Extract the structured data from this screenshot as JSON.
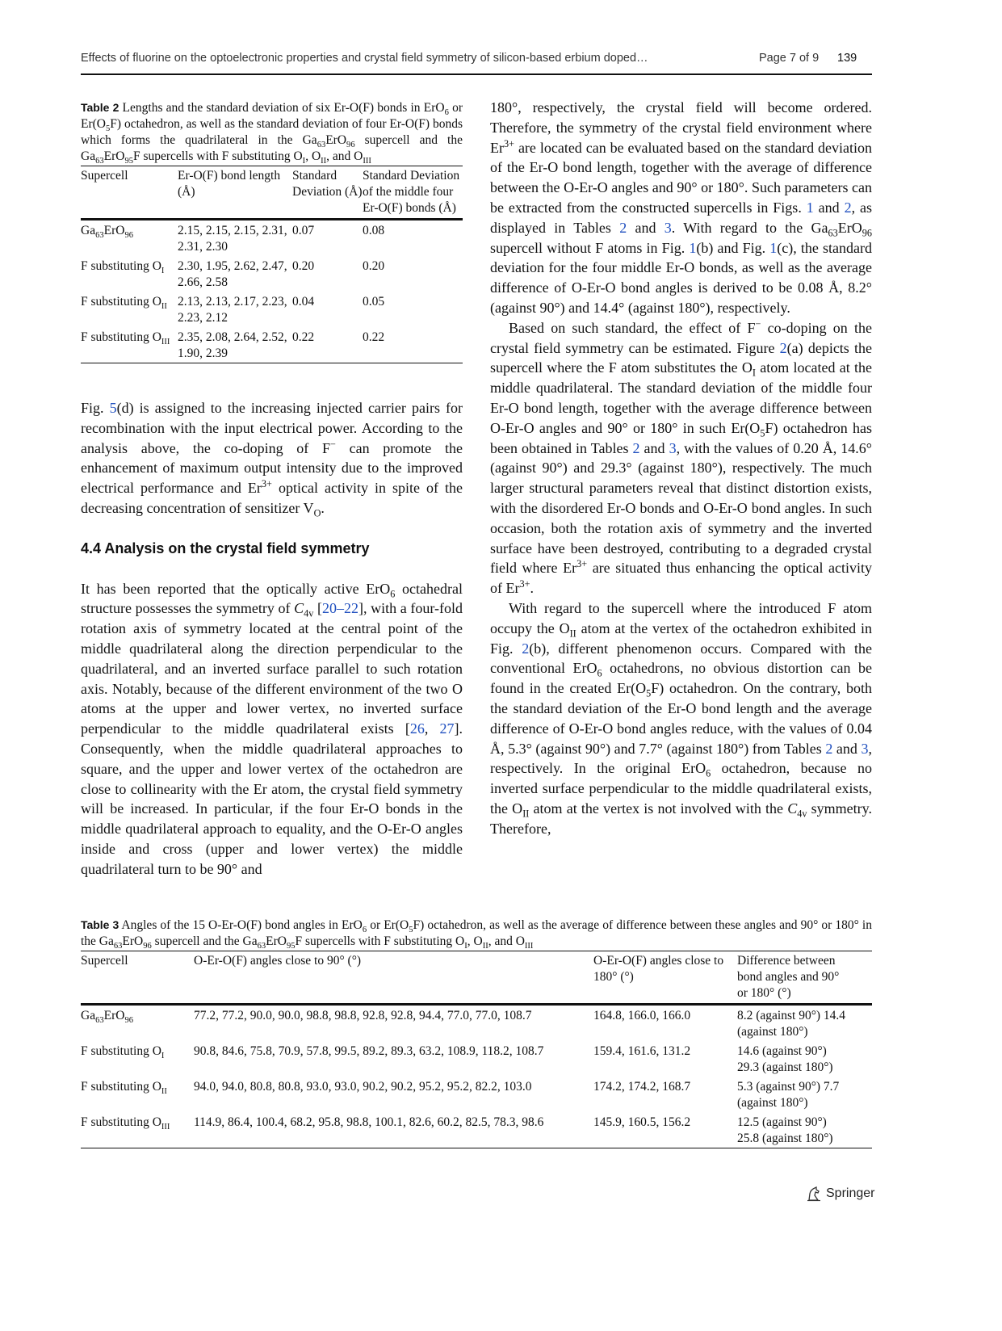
{
  "header": {
    "running_title": "Effects of fluorine on the optoelectronic properties and crystal field symmetry of silicon-based erbium doped…",
    "page_of": "Page 7 of 9",
    "page_number": "139"
  },
  "table2": {
    "caption": [
      [
        "b",
        "Table 2"
      ],
      "  Lengths and the standard deviation of six Er-O(F) bonds in ErO",
      [
        "sub",
        "6"
      ],
      " or Er(O",
      [
        "sub",
        "5"
      ],
      "F) octahedron, as well as the standard deviation of four Er-O(F) bonds which forms the quadrilateral in the Ga",
      [
        "sub",
        "63"
      ],
      "ErO",
      [
        "sub",
        "96"
      ],
      " supercell and the Ga",
      [
        "sub",
        "63"
      ],
      "ErO",
      [
        "sub",
        "95"
      ],
      "F supercells with F substituting O",
      [
        "sub",
        "I"
      ],
      ", O",
      [
        "sub",
        "II"
      ],
      ", and O",
      [
        "sub",
        "III"
      ]
    ],
    "headers": [
      [
        "Supercell"
      ],
      [
        "Er-O(F) bond length (Å)"
      ],
      [
        "Standard Deviation (Å)"
      ],
      [
        "Standard Deviation of the middle four Er-O(F) bonds (Å)"
      ]
    ],
    "rows": [
      [
        [
          "Ga",
          [
            "sub",
            "63"
          ],
          "ErO",
          [
            "sub",
            "96"
          ]
        ],
        [
          "2.15, 2.15, 2.15, 2.31, 2.31, 2.30"
        ],
        [
          "0.07"
        ],
        [
          "0.08"
        ]
      ],
      [
        [
          "F substituting O",
          [
            "sub",
            "I"
          ]
        ],
        [
          "2.30, 1.95, 2.62, 2.47, 2.66, 2.58"
        ],
        [
          "0.20"
        ],
        [
          "0.20"
        ]
      ],
      [
        [
          "F substituting O",
          [
            "sub",
            "II"
          ]
        ],
        [
          "2.13, 2.13, 2.17, 2.23, 2.23, 2.12"
        ],
        [
          "0.04"
        ],
        [
          "0.05"
        ]
      ],
      [
        [
          "F substituting O",
          [
            "sub",
            "III"
          ]
        ],
        [
          "2.35, 2.08, 2.64, 2.52, 1.90, 2.39"
        ],
        [
          "0.22"
        ],
        [
          "0.22"
        ]
      ]
    ]
  },
  "left_column": {
    "para1": [
      "Fig. ",
      [
        "link",
        "5"
      ],
      "(d) is assigned to the increasing injected carrier pairs for recombination with the input electrical power. According to the analysis above, the co-doping of F",
      [
        "sup",
        "−"
      ],
      " can promote the enhancement of maximum output intensity due to the improved electrical performance and Er",
      [
        "sup",
        "3+"
      ],
      " optical activity in spite of the decreasing concentration of sensitizer V",
      [
        "sub",
        "O"
      ],
      "."
    ],
    "section_heading": "4.4  Analysis on the crystal field symmetry",
    "para2": [
      "It has been reported that the optically active ErO",
      [
        "sub",
        "6"
      ],
      " octahedral structure possesses the symmetry of ",
      [
        "i",
        "C"
      ],
      [
        "sub",
        "4v"
      ],
      " [",
      [
        "link",
        "20–22"
      ],
      "], with a four-fold rotation axis of symmetry located at the central point of the middle quadrilateral along the direction perpendicular to the quadrilateral, and an inverted surface parallel to such rotation axis. Notably, because of the different environment of the two O atoms at the upper and lower vertex, no inverted surface perpendicular to the middle quadrilateral exists [",
      [
        "link",
        "26"
      ],
      ", ",
      [
        "link",
        "27"
      ],
      "]. Consequently, when the middle quadrilateral approaches to square, and the upper and lower vertex of the octahedron are close to collinearity with the Er atom, the crystal field symmetry will be increased. In particular, if the four Er-O bonds in the middle quadrilateral approach to equality, and the O-Er-O angles inside and cross (upper and lower vertex) the middle quadrilateral turn to be 90° and"
    ]
  },
  "right_column": {
    "para1": [
      "180°, respectively, the crystal field will become ordered. Therefore, the symmetry of the crystal field environment where Er",
      [
        "sup",
        "3+"
      ],
      " are located can be evaluated based on the standard deviation of the Er-O bond length, together with the average of difference between the O-Er-O angles and 90° or 180°. Such parameters can be extracted from the constructed supercells in Figs. ",
      [
        "link",
        "1"
      ],
      " and ",
      [
        "link",
        "2"
      ],
      ", as displayed in Tables ",
      [
        "link",
        "2"
      ],
      " and ",
      [
        "link",
        "3"
      ],
      ". With regard to the Ga",
      [
        "sub",
        "63"
      ],
      "ErO",
      [
        "sub",
        "96"
      ],
      " supercell without F atoms in Fig. ",
      [
        "link",
        "1"
      ],
      "(b) and Fig. ",
      [
        "link",
        "1"
      ],
      "(c), the standard deviation for the four middle Er-O bonds, as well as the average difference of O-Er-O bond angles is derived to be 0.08 Å, 8.2° (against 90°) and 14.4° (against 180°), respectively."
    ],
    "para2": [
      "Based on such standard, the effect of F",
      [
        "sup",
        "−"
      ],
      " co-doping on the crystal field symmetry can be estimated. Figure ",
      [
        "link",
        "2"
      ],
      "(a) depicts the supercell where the F atom substitutes the O",
      [
        "sub",
        "I"
      ],
      " atom located at the middle quadrilateral. The standard deviation of the middle four Er-O bond length, together with the average difference between O-Er-O angles and 90° or 180° in such Er(O",
      [
        "sub",
        "5"
      ],
      "F) octahedron has been obtained in Tables ",
      [
        "link",
        "2"
      ],
      " and ",
      [
        "link",
        "3"
      ],
      ", with the values of 0.20 Å, 14.6° (against 90°) and 29.3° (against 180°), respectively. The much larger structural parameters reveal that distinct distortion exists, with the disordered Er-O bonds and O-Er-O bond angles. In such occasion, both the rotation axis of symmetry and the inverted surface have been destroyed, contributing to a degraded crystal field where Er",
      [
        "sup",
        "3+"
      ],
      " are situated thus enhancing the optical activity of Er",
      [
        "sup",
        "3+"
      ],
      "."
    ],
    "para3": [
      "With regard to the supercell where the introduced F atom occupy the O",
      [
        "sub",
        "II"
      ],
      " atom at the vertex of the octahedron exhibited in Fig. ",
      [
        "link",
        "2"
      ],
      "(b), different phenomenon occurs. Compared with the conventional ErO",
      [
        "sub",
        "6"
      ],
      " octahedrons, no obvious distortion can be found in the created Er(O",
      [
        "sub",
        "5"
      ],
      "F) octahedron. On the contrary, both the standard deviation of the Er-O bond length and the average difference of O-Er-O bond angles reduce, with the values of 0.04 Å, 5.3° (against 90°) and 7.7° (against 180°) from Tables ",
      [
        "link",
        "2"
      ],
      " and ",
      [
        "link",
        "3"
      ],
      ", respectively. In the original ErO",
      [
        "sub",
        "6"
      ],
      " octahedron, because no inverted surface perpendicular to the middle quadrilateral exists, the O",
      [
        "sub",
        "II"
      ],
      " atom at the vertex is not involved with the ",
      [
        "i",
        "C"
      ],
      [
        "sub",
        "4v"
      ],
      " symmetry. Therefore,"
    ]
  },
  "table3": {
    "caption": [
      [
        "b",
        "Table 3"
      ],
      "  Angles of the 15 O-Er-O(F) bond angles in ErO",
      [
        "sub",
        "6"
      ],
      " or Er(O",
      [
        "sub",
        "5"
      ],
      "F) octahedron, as well as the average of difference between these angles and 90° or 180° in the Ga",
      [
        "sub",
        "63"
      ],
      "ErO",
      [
        "sub",
        "96"
      ],
      " supercell and the Ga",
      [
        "sub",
        "63"
      ],
      "ErO",
      [
        "sub",
        "95"
      ],
      "F supercells with F substituting O",
      [
        "sub",
        "I"
      ],
      ", O",
      [
        "sub",
        "II"
      ],
      ", and O",
      [
        "sub",
        "III"
      ]
    ],
    "headers": [
      [
        "Supercell"
      ],
      [
        "O-Er-O(F) angles close to 90° (°)"
      ],
      [
        "O-Er-O(F) angles close to 180° (°)"
      ],
      [
        "Difference between bond angles and 90° or 180° (°)"
      ]
    ],
    "rows": [
      [
        [
          "Ga",
          [
            "sub",
            "63"
          ],
          "ErO",
          [
            "sub",
            "96"
          ]
        ],
        [
          "77.2, 77.2, 90.0, 90.0, 98.8, 98.8, 92.8, 92.8, 94.4, 77.0, 77.0, 108.7"
        ],
        [
          "164.8, 166.0, 166.0"
        ],
        [
          "8.2  (against 90°) 14.4 (against 180°)"
        ]
      ],
      [
        [
          "F substituting O",
          [
            "sub",
            "I"
          ]
        ],
        [
          "90.8, 84.6, 75.8, 70.9, 57.8, 99.5, 89.2, 89.3, 63.2, 108.9, 118.2, 108.7"
        ],
        [
          "159.4, 161.6, 131.2"
        ],
        [
          "14.6 (against 90°) 29.3 (against 180°)"
        ]
      ],
      [
        [
          "F substituting O",
          [
            "sub",
            "II"
          ]
        ],
        [
          "94.0, 94.0, 80.8, 80.8, 93.0, 93.0, 90.2, 90.2, 95.2, 95.2, 82.2, 103.0"
        ],
        [
          "174.2, 174.2, 168.7"
        ],
        [
          "5.3 (against 90°) 7.7 (against 180°)"
        ]
      ],
      [
        [
          "F substituting O",
          [
            "sub",
            "III"
          ]
        ],
        [
          "114.9, 86.4, 100.4, 68.2, 95.8, 98.8, 100.1, 82.6, 60.2, 82.5, 78.3, 98.6"
        ],
        [
          "145.9, 160.5, 156.2"
        ],
        [
          "12.5 (against 90°) 25.8 (against 180°)"
        ]
      ]
    ]
  },
  "footer": {
    "publisher": "Springer",
    "publisher_icon": "springer-horse-icon"
  },
  "colors": {
    "link": "#1f4fbf",
    "text": "#111111"
  }
}
